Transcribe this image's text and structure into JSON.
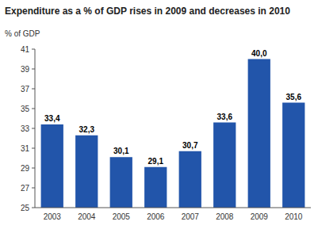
{
  "chart_data": {
    "type": "bar",
    "title": "Expenditure as a % of GDP rises in 2009 and decreases in 2010",
    "y_label": "% of GDP",
    "categories": [
      "2003",
      "2004",
      "2005",
      "2006",
      "2007",
      "2008",
      "2009",
      "2010"
    ],
    "values": [
      33.4,
      32.3,
      30.1,
      29.1,
      30.7,
      33.6,
      40.0,
      35.6
    ],
    "value_labels": [
      "33,4",
      "32,3",
      "30,1",
      "29,1",
      "30,7",
      "33,6",
      "40,0",
      "35,6"
    ],
    "data_labels": true,
    "color": "#2255aa",
    "ylim": [
      25,
      41
    ],
    "yticks": [
      25,
      27,
      29,
      31,
      33,
      35,
      37,
      39,
      41
    ],
    "grid": false
  }
}
